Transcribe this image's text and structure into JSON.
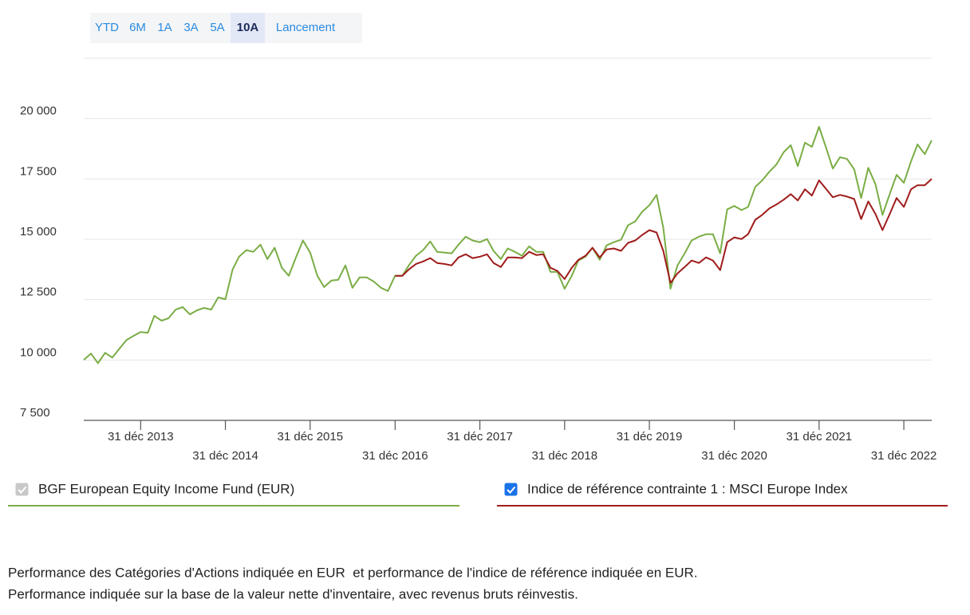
{
  "range_buttons": {
    "options": [
      "YTD",
      "6M",
      "1A",
      "3A",
      "5A",
      "10A",
      "Lancement"
    ],
    "selected_index": 5
  },
  "chart_data": {
    "type": "line",
    "x": [
      "2013-04-30",
      "2013-05-31",
      "2013-06-30",
      "2013-07-31",
      "2013-08-31",
      "2013-09-30",
      "2013-10-31",
      "2013-11-30",
      "2013-12-31",
      "2014-01-31",
      "2014-02-28",
      "2014-03-31",
      "2014-04-30",
      "2014-05-31",
      "2014-06-30",
      "2014-07-31",
      "2014-08-31",
      "2014-09-30",
      "2014-10-31",
      "2014-11-30",
      "2014-12-31",
      "2015-01-31",
      "2015-02-28",
      "2015-03-31",
      "2015-04-30",
      "2015-05-31",
      "2015-06-30",
      "2015-07-31",
      "2015-08-31",
      "2015-09-30",
      "2015-10-31",
      "2015-11-30",
      "2015-12-31",
      "2016-01-31",
      "2016-02-29",
      "2016-03-31",
      "2016-04-30",
      "2016-05-31",
      "2016-06-30",
      "2016-07-31",
      "2016-08-31",
      "2016-09-30",
      "2016-10-31",
      "2016-11-30",
      "2016-12-31",
      "2017-01-31",
      "2017-02-28",
      "2017-03-31",
      "2017-04-30",
      "2017-05-31",
      "2017-06-30",
      "2017-07-31",
      "2017-08-31",
      "2017-09-30",
      "2017-10-31",
      "2017-11-30",
      "2017-12-31",
      "2018-01-31",
      "2018-02-28",
      "2018-03-31",
      "2018-04-30",
      "2018-05-31",
      "2018-06-30",
      "2018-07-31",
      "2018-08-31",
      "2018-09-30",
      "2018-10-31",
      "2018-11-30",
      "2018-12-31",
      "2019-01-31",
      "2019-02-28",
      "2019-03-31",
      "2019-04-30",
      "2019-05-31",
      "2019-06-30",
      "2019-07-31",
      "2019-08-31",
      "2019-09-30",
      "2019-10-31",
      "2019-11-30",
      "2019-12-31",
      "2020-01-31",
      "2020-02-29",
      "2020-03-31",
      "2020-04-30",
      "2020-05-31",
      "2020-06-30",
      "2020-07-31",
      "2020-08-31",
      "2020-09-30",
      "2020-10-31",
      "2020-11-30",
      "2020-12-31",
      "2021-01-31",
      "2021-02-28",
      "2021-03-31",
      "2021-04-30",
      "2021-05-31",
      "2021-06-30",
      "2021-07-31",
      "2021-08-31",
      "2021-09-30",
      "2021-10-31",
      "2021-11-30",
      "2021-12-31",
      "2022-01-31",
      "2022-02-28",
      "2022-03-31",
      "2022-04-30",
      "2022-05-31",
      "2022-06-30",
      "2022-07-31",
      "2022-08-31",
      "2022-09-30",
      "2022-10-31",
      "2022-11-30",
      "2022-12-31",
      "2023-01-31",
      "2023-02-28",
      "2023-03-31",
      "2023-04-30"
    ],
    "series": [
      {
        "name": "BGF European Equity Income Fund (EUR)",
        "color": "#7aad45",
        "checked": true,
        "checkbox_color": "#c8c8c8",
        "values": [
          10000,
          10270,
          9870,
          10300,
          10100,
          10460,
          10830,
          11000,
          11160,
          11130,
          11830,
          11630,
          11730,
          12090,
          12190,
          11890,
          12060,
          12160,
          12090,
          12590,
          12520,
          13750,
          14280,
          14550,
          14480,
          14780,
          14180,
          14650,
          13820,
          13490,
          14250,
          14950,
          14450,
          13490,
          13020,
          13290,
          13320,
          13920,
          12990,
          13420,
          13420,
          13250,
          12990,
          12860,
          13490,
          13490,
          13920,
          14320,
          14550,
          14910,
          14480,
          14450,
          14420,
          14780,
          15110,
          14950,
          14880,
          15010,
          14520,
          14180,
          14620,
          14480,
          14320,
          14710,
          14480,
          14480,
          13650,
          13650,
          12950,
          13490,
          14120,
          14280,
          14650,
          14150,
          14750,
          14880,
          14980,
          15580,
          15740,
          16140,
          16410,
          16840,
          15480,
          12950,
          13920,
          14420,
          14950,
          15110,
          15210,
          15210,
          14420,
          16240,
          16380,
          16210,
          16340,
          17170,
          17440,
          17800,
          18100,
          18600,
          18900,
          18030,
          19000,
          18830,
          19660,
          18760,
          17930,
          18400,
          18330,
          17900,
          16710,
          17960,
          17270,
          16010,
          16870,
          17670,
          17340,
          18230,
          18930,
          18530,
          19100
        ]
      },
      {
        "name": "Indice de référence contrainte 1 : MSCI Europe Index",
        "color": "#a01c1c",
        "checked": true,
        "checkbox_color": "#1a73e8",
        "values": [
          null,
          null,
          null,
          null,
          null,
          null,
          null,
          null,
          null,
          null,
          null,
          null,
          null,
          null,
          null,
          null,
          null,
          null,
          null,
          null,
          null,
          null,
          null,
          null,
          null,
          null,
          null,
          null,
          null,
          null,
          null,
          null,
          null,
          null,
          null,
          null,
          null,
          null,
          null,
          null,
          null,
          null,
          null,
          null,
          13490,
          13490,
          13750,
          13980,
          14080,
          14220,
          14020,
          13980,
          13920,
          14250,
          14380,
          14220,
          14280,
          14380,
          14020,
          13850,
          14250,
          14250,
          14220,
          14480,
          14350,
          14380,
          13820,
          13690,
          13350,
          13820,
          14150,
          14320,
          14650,
          14250,
          14580,
          14620,
          14520,
          14850,
          14950,
          15180,
          15380,
          15280,
          14520,
          13190,
          13590,
          13850,
          14120,
          14020,
          14250,
          14120,
          13720,
          14880,
          15080,
          15010,
          15210,
          15810,
          16010,
          16280,
          16440,
          16640,
          16870,
          16610,
          17070,
          16810,
          17440,
          17070,
          16740,
          16840,
          16770,
          16670,
          15840,
          16570,
          16040,
          15380,
          16040,
          16710,
          16340,
          17070,
          17240,
          17240,
          17500
        ]
      }
    ],
    "xlim": [
      "2013-04-30",
      "2023-04-30"
    ],
    "xticks": [
      {
        "value": "2013-12-31",
        "label": "31 déc 2013"
      },
      {
        "value": "2014-12-31",
        "label": "31 déc 2014"
      },
      {
        "value": "2015-12-31",
        "label": "31 déc 2015"
      },
      {
        "value": "2016-12-31",
        "label": "31 déc 2016"
      },
      {
        "value": "2017-12-31",
        "label": "31 déc 2017"
      },
      {
        "value": "2018-12-31",
        "label": "31 déc 2018"
      },
      {
        "value": "2019-12-31",
        "label": "31 déc 2019"
      },
      {
        "value": "2020-12-31",
        "label": "31 déc 2020"
      },
      {
        "value": "2021-12-31",
        "label": "31 déc 2021"
      },
      {
        "value": "2022-12-31",
        "label": "31 déc 2022"
      }
    ],
    "ylim": [
      7500,
      22500
    ],
    "yticks": [
      {
        "value": 7500,
        "label": "7 500"
      },
      {
        "value": 10000,
        "label": "10 000"
      },
      {
        "value": 12500,
        "label": "12 500"
      },
      {
        "value": 15000,
        "label": "15 000"
      },
      {
        "value": 17500,
        "label": "17 500"
      },
      {
        "value": 20000,
        "label": "20 000"
      }
    ],
    "grid": true
  },
  "notes": [
    "Performance des Catégories d'Actions indiquée en EUR  et performance de l'indice de référence indiquée en EUR.",
    "Performance indiquée sur la base de la valeur nette d'inventaire, avec revenus bruts réinvestis."
  ]
}
